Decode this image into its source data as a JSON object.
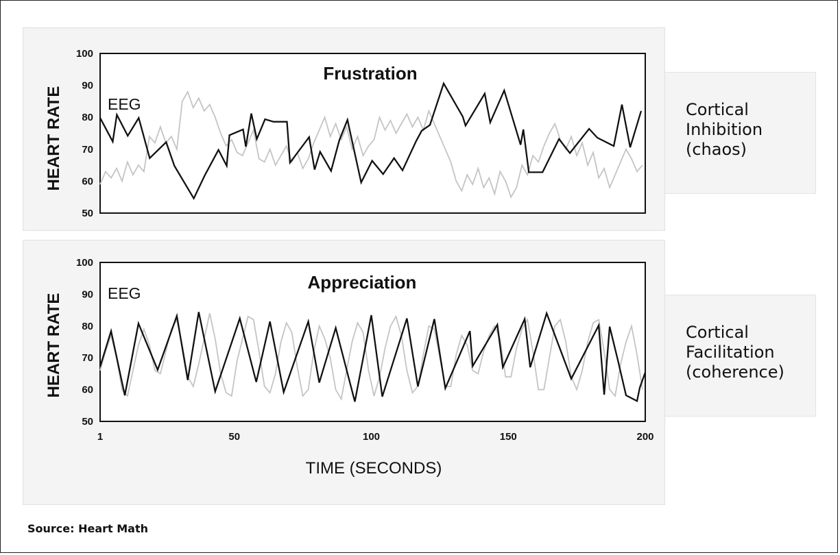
{
  "source": "Source: Heart Math",
  "x_axis_title": "TIME (SECONDS)",
  "colors": {
    "hr_line": "#111111",
    "eeg_line": "#c4c4c4",
    "panel": "#f4f4f4"
  },
  "chart_data": [
    {
      "type": "line",
      "title": "Frustration",
      "ylabel": "HEART RATE",
      "annotation": "EEG",
      "side_label": [
        "Cortical",
        "Inhibition",
        "(chaos)"
      ],
      "ylim": [
        50,
        100
      ],
      "xlim": [
        1,
        200
      ],
      "yticks": [
        "100",
        "90",
        "80",
        "70",
        "60",
        "50"
      ],
      "xticks": [],
      "series": [
        {
          "x": [
            1,
            5.6,
            7.1,
            11.1,
            15.1,
            19.1,
            25.1,
            28.1,
            35.2,
            39.2,
            44.2,
            47.2,
            48.2,
            53.2,
            54.2,
            56.2,
            58.2,
            61.2,
            64.3,
            69.2,
            70.3,
            77.3,
            79.3,
            81.3,
            85.3,
            88.3,
            91.3,
            96.3,
            100.3,
            104.3,
            108.3,
            111.4,
            116.4,
            118.4,
            121.4,
            126.4,
            133.4,
            134.4,
            141.4,
            143.4,
            148.5,
            154.5,
            155.5,
            157.5,
            162.5,
            168.5,
            172.5,
            179.5,
            182.5,
            188.5,
            191.5,
            194.5,
            198.5
          ],
          "y": [
            79.8,
            72.4,
            80.8,
            74.2,
            79.8,
            67.2,
            72.2,
            64.8,
            54.6,
            61.8,
            69.8,
            64.8,
            74.4,
            76.2,
            70.8,
            81.2,
            73.2,
            79.4,
            78.6,
            78.6,
            65.8,
            73.8,
            63.6,
            69.2,
            63.2,
            72.8,
            79.2,
            59.6,
            66.4,
            62.2,
            67.2,
            63.4,
            72.6,
            75.8,
            77.6,
            90.6,
            80.2,
            77.4,
            87.4,
            78.4,
            88.4,
            71.4,
            76.2,
            62.8,
            62.8,
            73.2,
            68.8,
            76.4,
            73.6,
            71.0,
            84.0,
            70.6,
            82.0
          ]
        },
        {
          "x": [
            1,
            3,
            5,
            7,
            9,
            11,
            13,
            15,
            17,
            19,
            21,
            23,
            25,
            27,
            29,
            31,
            33,
            35,
            37,
            39,
            41,
            43,
            45,
            47,
            49,
            51,
            53,
            55,
            57,
            59,
            61,
            63,
            65,
            67,
            69,
            71,
            73,
            75,
            77,
            79,
            81,
            83,
            85,
            87,
            89,
            91,
            93,
            95,
            97,
            99,
            101,
            103,
            105,
            107,
            109,
            111,
            113,
            115,
            117,
            119,
            121,
            123,
            125,
            127,
            129,
            131,
            133,
            135,
            137,
            139,
            141,
            143,
            145,
            147,
            149,
            151,
            153,
            155,
            157,
            159,
            161,
            163,
            165,
            167,
            169,
            171,
            173,
            175,
            177,
            179,
            181,
            183,
            185,
            187,
            189,
            191,
            193,
            195,
            197,
            199
          ],
          "y": [
            59,
            63,
            61,
            64,
            60,
            66,
            62,
            65,
            63,
            74,
            72,
            77,
            72,
            74,
            70,
            85,
            88,
            83,
            86,
            82,
            84,
            80,
            75,
            71,
            73,
            69,
            68,
            72,
            76,
            67,
            66,
            70,
            65,
            68,
            71,
            66,
            69,
            64,
            67,
            72,
            76,
            80,
            74,
            78,
            73,
            77,
            70,
            74,
            68,
            71,
            73,
            80,
            76,
            79,
            75,
            78,
            81,
            77,
            80,
            76,
            82,
            78,
            74,
            70,
            66,
            60,
            57,
            62,
            59,
            64,
            58,
            61,
            56,
            63,
            60,
            55,
            58,
            65,
            62,
            68,
            66,
            71,
            75,
            78,
            73,
            70,
            74,
            68,
            72,
            65,
            69,
            61,
            64,
            58,
            62,
            66,
            70,
            67,
            63,
            65
          ]
        }
      ]
    },
    {
      "type": "line",
      "title": "Appreciation",
      "ylabel": "HEART RATE",
      "annotation": "EEG",
      "side_label": [
        "Cortical",
        "Facilitation",
        "(coherence)"
      ],
      "ylim": [
        50,
        100
      ],
      "xlim": [
        1,
        200
      ],
      "yticks": [
        "100",
        "90",
        "80",
        "70",
        "60",
        "50"
      ],
      "xticks": [
        "1",
        "50",
        "100",
        "150",
        "200"
      ],
      "series": [
        {
          "x": [
            1,
            5,
            10,
            15,
            22,
            29,
            33,
            37,
            43,
            52,
            58,
            63,
            68,
            77,
            81,
            87,
            94,
            100,
            104,
            113,
            117,
            123,
            127,
            136,
            137,
            146,
            148,
            156,
            158,
            164,
            173,
            183,
            185,
            187,
            190,
            193,
            197,
            198,
            200
          ],
          "y": [
            67.2,
            78.4,
            58.2,
            80.8,
            66.2,
            83.2,
            63.0,
            84.4,
            59.4,
            82.4,
            62.4,
            81.4,
            59.2,
            81.4,
            62.2,
            79.4,
            56.2,
            83.4,
            57.8,
            82.4,
            61.0,
            82.2,
            60.4,
            78.4,
            67.4,
            80.4,
            67.0,
            82.2,
            67.0,
            84.0,
            63.4,
            80.2,
            58.4,
            79.8,
            69.2,
            58.2,
            56.4,
            60.6,
            65.4
          ]
        },
        {
          "x": [
            1,
            3,
            5,
            7,
            9,
            11,
            13,
            15,
            17,
            19,
            21,
            23,
            25,
            27,
            29,
            31,
            33,
            35,
            37,
            39,
            41,
            43,
            45,
            47,
            49,
            51,
            53,
            55,
            57,
            59,
            61,
            63,
            65,
            67,
            69,
            71,
            73,
            75,
            77,
            79,
            81,
            83,
            85,
            87,
            89,
            91,
            93,
            95,
            97,
            99,
            101,
            103,
            105,
            107,
            109,
            111,
            113,
            115,
            117,
            119,
            121,
            123,
            125,
            127,
            129,
            131,
            133,
            135,
            137,
            139,
            141,
            143,
            145,
            147,
            149,
            151,
            153,
            155,
            157,
            159,
            161,
            163,
            165,
            167,
            169,
            171,
            173,
            175,
            177,
            179,
            181,
            183,
            185,
            187,
            189,
            191,
            193,
            195,
            197,
            199
          ],
          "y": [
            66,
            72,
            77,
            70,
            60,
            58,
            66,
            74,
            79,
            74,
            66,
            65,
            72,
            79,
            82,
            74,
            64,
            61,
            68,
            76,
            84,
            76,
            65,
            59,
            58,
            69,
            76,
            83,
            82,
            72,
            61,
            59,
            65,
            75,
            81,
            78,
            67,
            58,
            60,
            72,
            80,
            76,
            70,
            60,
            57,
            66,
            75,
            81,
            78,
            66,
            58,
            64,
            73,
            80,
            83,
            77,
            66,
            59,
            61,
            71,
            80,
            79,
            70,
            61,
            61,
            71,
            77,
            74,
            66,
            65,
            72,
            77,
            80,
            76,
            64,
            64,
            73,
            79,
            82,
            72,
            60,
            60,
            70,
            80,
            82,
            75,
            64,
            60,
            66,
            75,
            81,
            82,
            72,
            60,
            58,
            68,
            75,
            80,
            71,
            60
          ]
        }
      ]
    }
  ]
}
